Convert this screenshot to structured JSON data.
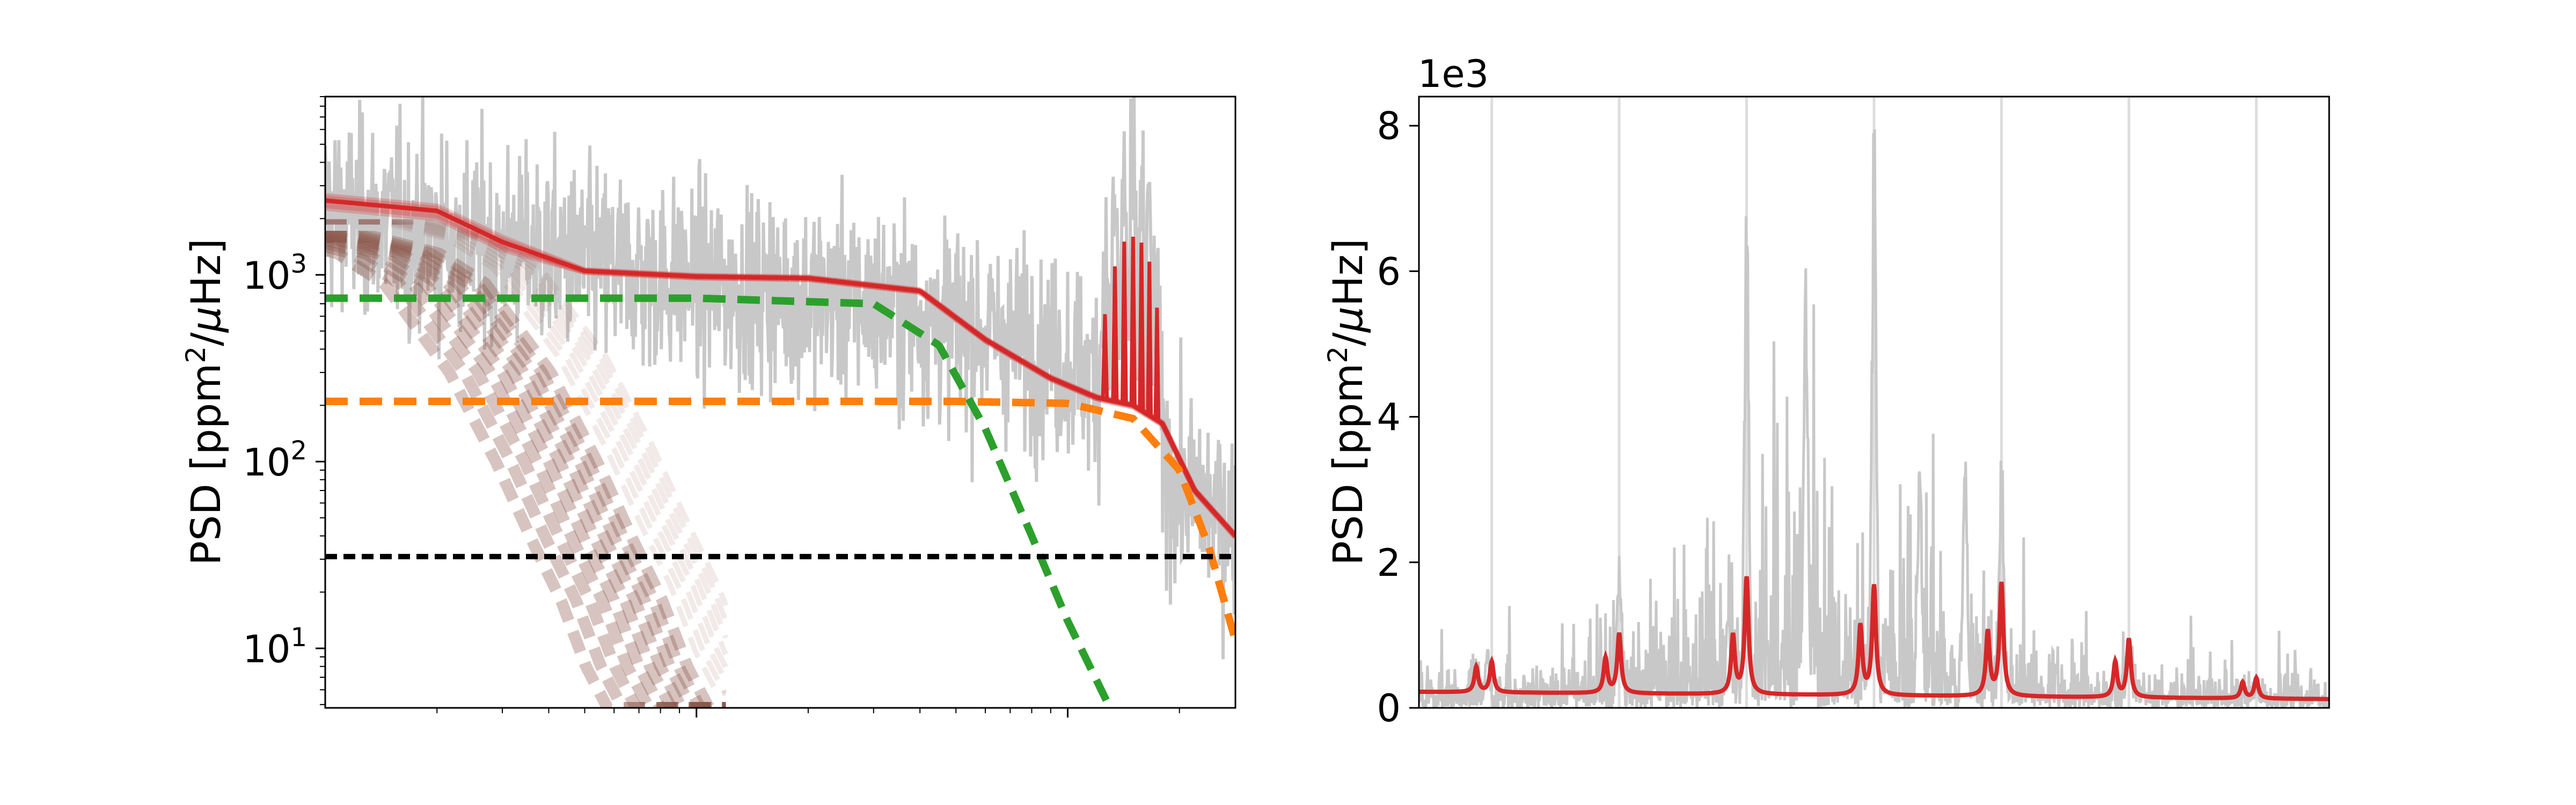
{
  "chart_data": [
    {
      "type": "line",
      "panel": "left",
      "ylabel": "PSD [ppm$^2/\\mu$Hz]",
      "yscale": "log",
      "ylim": [
        4.8,
        9000
      ],
      "xscale": "log",
      "xlim": [
        1,
        283
      ],
      "xtick_labels_visible": false,
      "yticks": [
        {
          "value": 10,
          "label": "10",
          "exp": "1"
        },
        {
          "value": 100,
          "label": "10",
          "exp": "2"
        },
        {
          "value": 1000,
          "label": "10",
          "exp": "3"
        }
      ],
      "grid": false,
      "legend": "none",
      "colors": {
        "data": "#c8c8c8",
        "model": "#d62728",
        "granulation_low": "#8c564b",
        "granulation_mid": "#2ca02c",
        "granulation_high": "#ff7f0e",
        "white_noise": "#000000"
      },
      "series": [
        {
          "role": "observed-psd",
          "description_points": {
            "x": [
              1,
              3,
              10,
              30,
              60,
              100,
              150,
              200,
              283
            ],
            "y": [
              2200,
              1400,
              900,
              700,
              500,
              350,
              220,
              70,
              50
            ]
          }
        },
        {
          "role": "total-model",
          "x": [
            1,
            2,
            3,
            5,
            10,
            20,
            40,
            60,
            90,
            120,
            150,
            180,
            220,
            283
          ],
          "y": [
            2500,
            2200,
            1500,
            1050,
            980,
            960,
            820,
            450,
            280,
            220,
            200,
            160,
            70,
            40
          ]
        },
        {
          "role": "granulation-component-1",
          "x": [
            1,
            1.5,
            2,
            3,
            4,
            5,
            6,
            7,
            8
          ],
          "y": [
            1600,
            1300,
            900,
            300,
            100,
            38,
            18,
            8,
            4.8
          ]
        },
        {
          "role": "granulation-component-2",
          "x": [
            1,
            10,
            30,
            45,
            60,
            80,
            100,
            130
          ],
          "y": [
            750,
            750,
            700,
            420,
            150,
            40,
            14,
            4.8
          ]
        },
        {
          "role": "granulation-component-3",
          "x": [
            1,
            50,
            100,
            150,
            200,
            240,
            283
          ],
          "y": [
            210,
            210,
            205,
            170,
            90,
            35,
            11
          ]
        },
        {
          "role": "white-noise",
          "x": [
            1,
            283
          ],
          "y": [
            31,
            31
          ]
        }
      ],
      "oscillation_peaks_x": [
        126,
        134,
        142,
        150,
        158,
        166,
        174
      ],
      "oscillation_peaks_y": [
        400,
        900,
        1300,
        1400,
        1300,
        1000,
        500
      ]
    },
    {
      "type": "line",
      "panel": "right",
      "ylabel": "PSD [ppm$^2/\\mu$Hz]",
      "offset_label": "1e3",
      "ylim": [
        0,
        8.4
      ],
      "xlim": [
        0,
        100
      ],
      "xtick_labels_visible": false,
      "yticks": [
        0,
        2,
        4,
        6,
        8
      ],
      "ytick_labels": [
        "0",
        "2",
        "4",
        "6",
        "8"
      ],
      "grid": false,
      "legend": "none",
      "reference_lines_x": [
        8,
        22,
        36,
        50,
        64,
        78,
        92
      ],
      "observed_peaks": [
        {
          "x": 7.5,
          "y": 0.95
        },
        {
          "x": 22,
          "y": 2.1
        },
        {
          "x": 34,
          "y": 1.5
        },
        {
          "x": 36,
          "y": 7.4
        },
        {
          "x": 42.5,
          "y": 6.7
        },
        {
          "x": 50,
          "y": 8.4
        },
        {
          "x": 55,
          "y": 3.7
        },
        {
          "x": 60,
          "y": 3.9
        },
        {
          "x": 64,
          "y": 3.8
        },
        {
          "x": 78,
          "y": 1.1
        },
        {
          "x": 92,
          "y": 0.3
        }
      ],
      "model": {
        "baseline": 0.22,
        "peaks": [
          {
            "x": 6.3,
            "y": 0.35
          },
          {
            "x": 8,
            "y": 0.42
          },
          {
            "x": 20.5,
            "y": 0.48
          },
          {
            "x": 22,
            "y": 0.82
          },
          {
            "x": 34.5,
            "y": 0.8
          },
          {
            "x": 36,
            "y": 1.6
          },
          {
            "x": 48.5,
            "y": 0.95
          },
          {
            "x": 50,
            "y": 1.5
          },
          {
            "x": 62.5,
            "y": 0.88
          },
          {
            "x": 64,
            "y": 1.55
          },
          {
            "x": 76.5,
            "y": 0.48
          },
          {
            "x": 78,
            "y": 0.8
          },
          {
            "x": 90.5,
            "y": 0.22
          },
          {
            "x": 92,
            "y": 0.28
          }
        ]
      }
    }
  ]
}
